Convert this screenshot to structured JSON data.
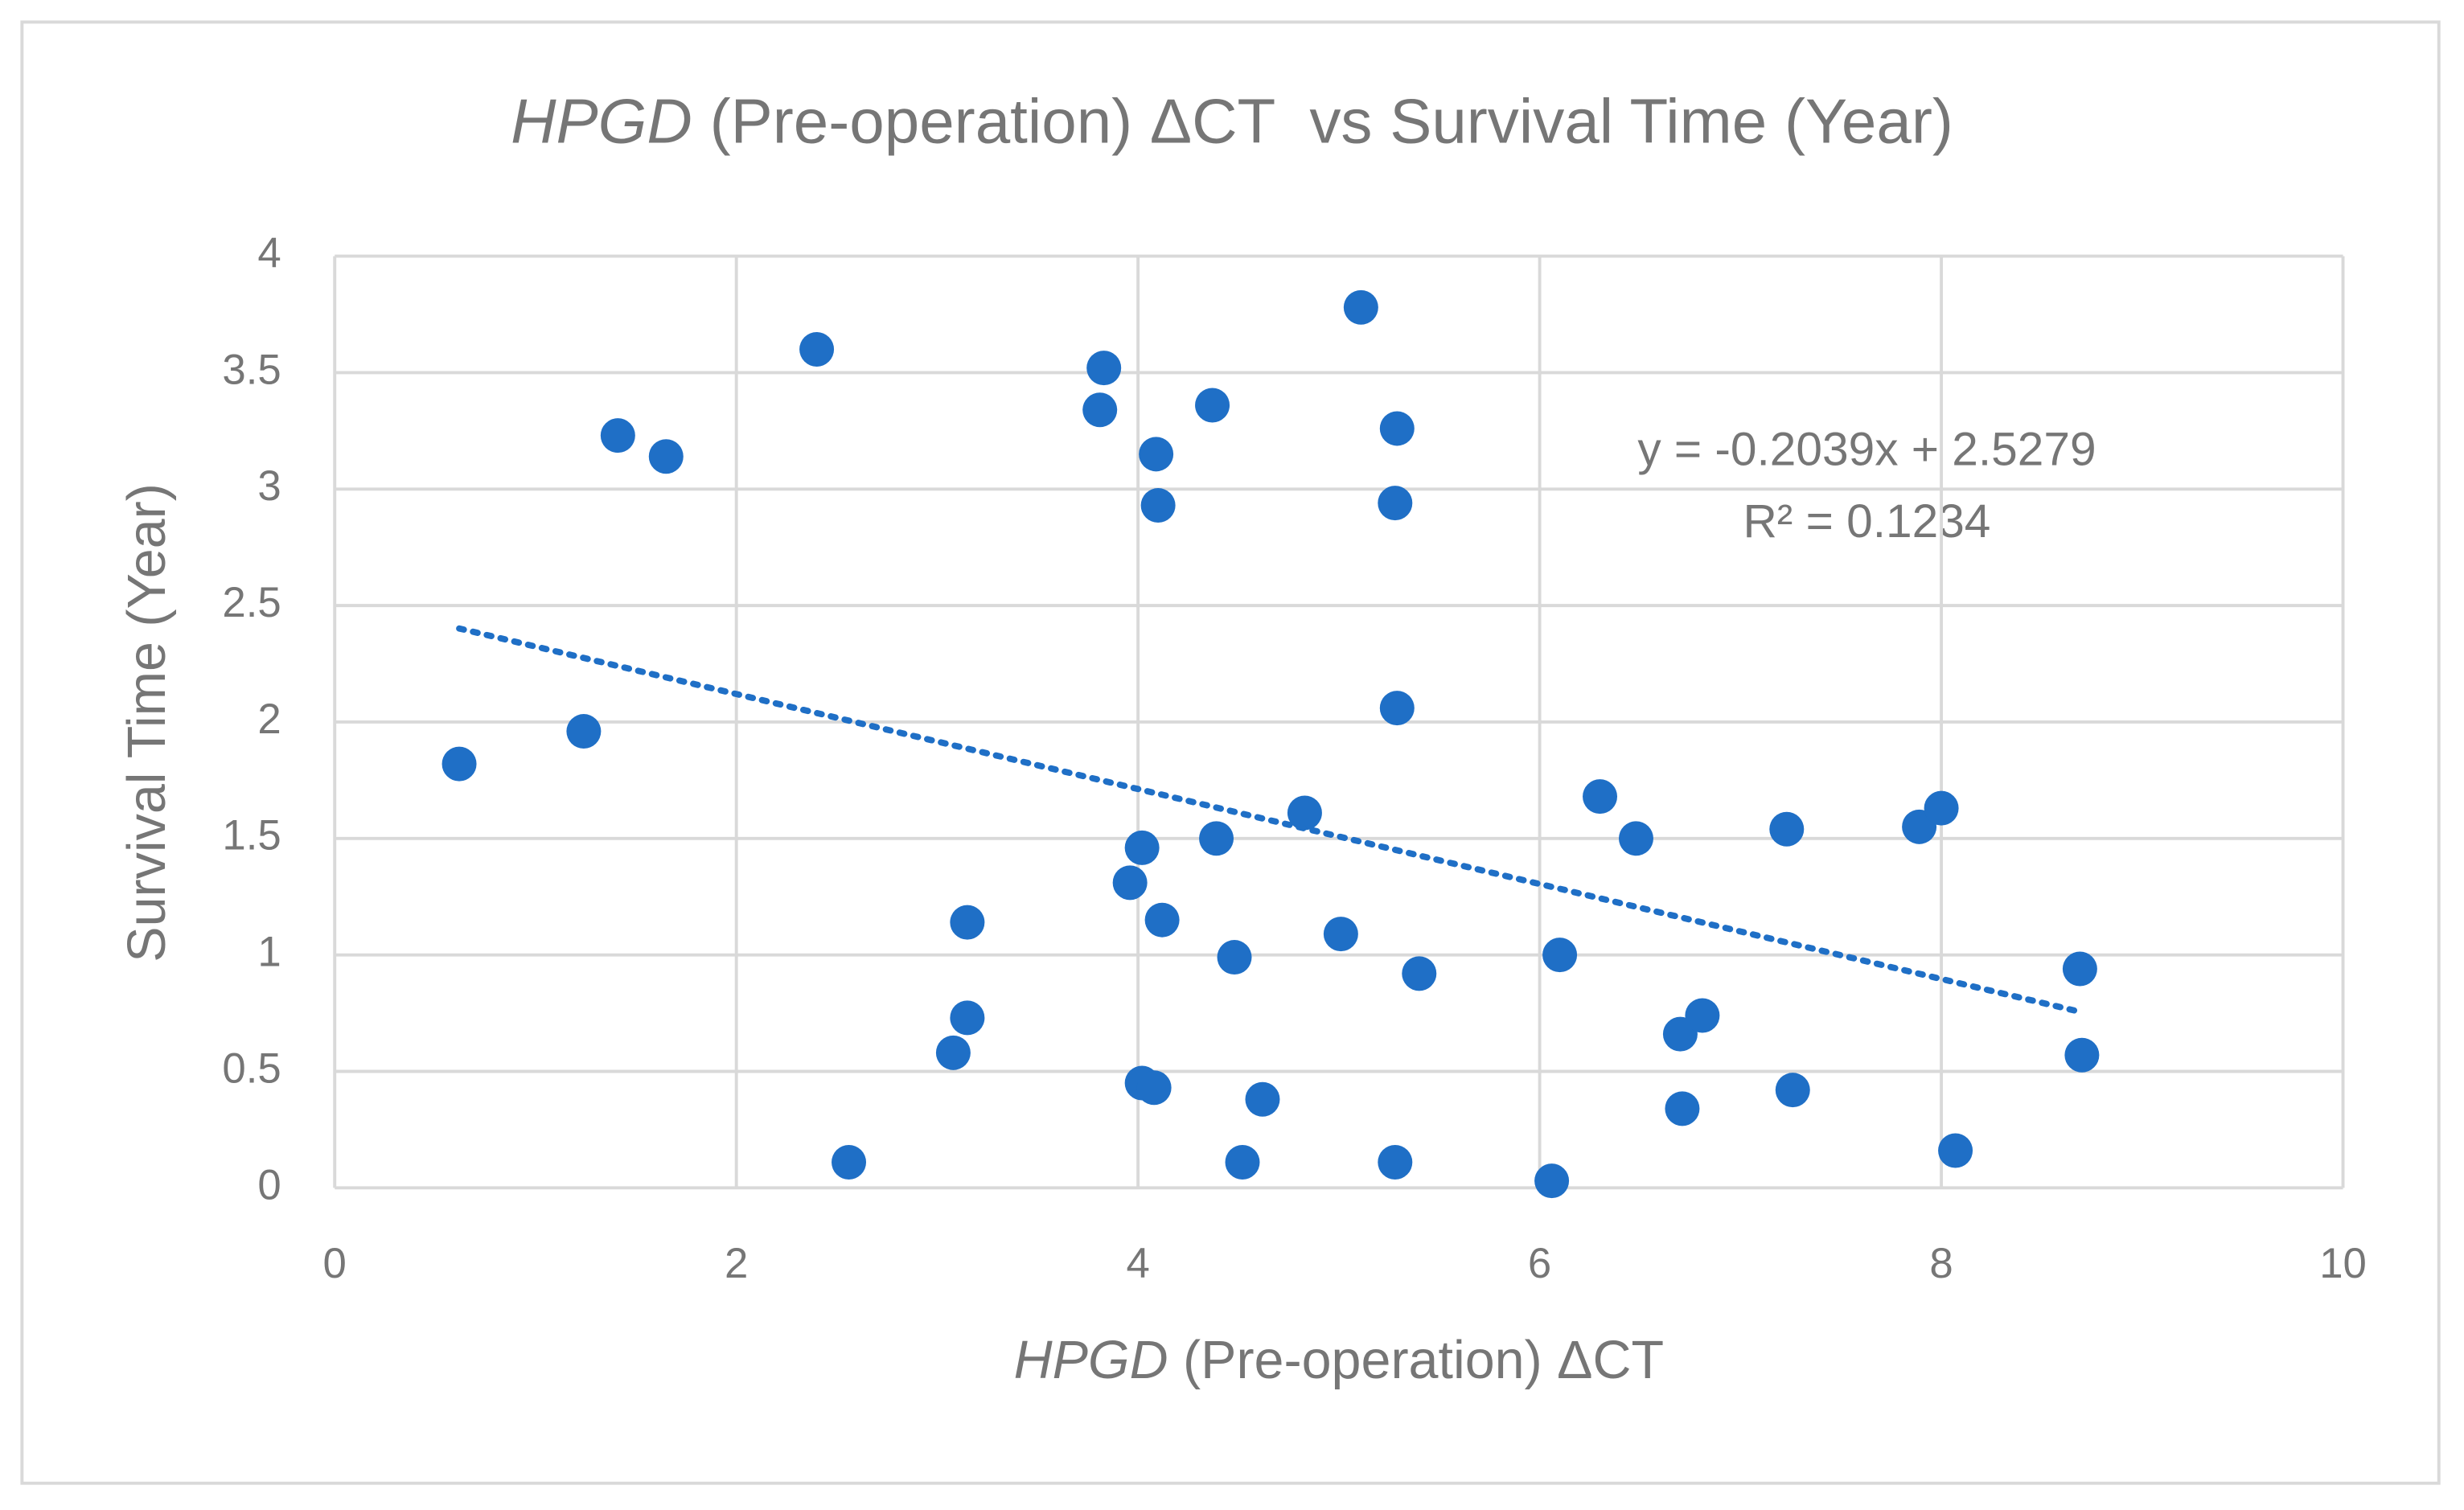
{
  "chart_data": {
    "type": "scatter",
    "title": {
      "italic": "HPGD",
      "text": " (Pre-operation) ΔCT  vs Survival Time (Year)"
    },
    "x_label": {
      "italic": "HPGD",
      "text": " (Pre-operation) ΔCT"
    },
    "y_label": "Survival Time (Year)",
    "color": "#1f6fc6",
    "grid": true,
    "xlim": [
      0,
      10
    ],
    "xticks": [
      0,
      2,
      4,
      6,
      8,
      10
    ],
    "ylim": [
      0,
      4
    ],
    "yticks": [
      0,
      0.5,
      1,
      1.5,
      2,
      2.5,
      3,
      3.5,
      4
    ],
    "x": [
      0.62,
      1.24,
      1.41,
      1.65,
      2.4,
      2.56,
      3.08,
      3.15,
      3.15,
      3.81,
      3.83,
      3.96,
      4.02,
      4.02,
      4.08,
      4.09,
      4.1,
      4.12,
      4.37,
      4.39,
      4.48,
      4.52,
      4.62,
      4.83,
      5.01,
      5.11,
      5.29,
      5.28,
      5.29,
      5.28,
      5.4,
      6.06,
      6.1,
      6.3,
      6.48,
      6.7,
      6.71,
      6.81,
      7.23,
      7.26,
      7.89,
      8.0,
      8.07,
      8.69,
      8.7
    ],
    "values": [
      1.82,
      1.96,
      3.23,
      3.14,
      3.6,
      0.11,
      0.58,
      1.14,
      0.73,
      3.34,
      3.52,
      1.31,
      1.46,
      0.45,
      0.43,
      3.15,
      2.93,
      1.15,
      3.36,
      1.5,
      0.99,
      0.11,
      0.38,
      1.61,
      1.09,
      3.78,
      3.26,
      2.94,
      2.06,
      0.11,
      0.92,
      0.03,
      1.0,
      1.68,
      1.5,
      0.66,
      0.34,
      0.74,
      1.54,
      0.42,
      1.55,
      1.63,
      0.16,
      0.94,
      0.57
    ],
    "trendline": {
      "slope": -0.2039,
      "intercept": 2.5279,
      "equation": "y = -0.2039x + 2.5279",
      "r_squared": 0.1234,
      "r_squared_label": "R² = 0.1234"
    }
  }
}
